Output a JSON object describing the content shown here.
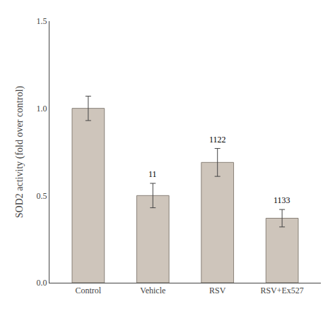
{
  "chart_data": {
    "type": "bar",
    "categories": [
      "Control",
      "Vehicle",
      "RSV",
      "RSV+Ex527"
    ],
    "values": [
      1.0,
      0.5,
      0.69,
      0.37
    ],
    "errors": [
      0.07,
      0.07,
      0.08,
      0.05
    ],
    "annotations": [
      null,
      "11",
      "1122",
      "1133"
    ],
    "color": "#cec5bb",
    "ylabel": "SOD2 activity (fold over control)",
    "ylim": [
      0.0,
      1.5
    ],
    "yticks": [
      {
        "value": 0.0,
        "label": "0.0"
      },
      0.5,
      {
        "value": 1.0,
        "label": "1.0"
      },
      1.5
    ],
    "grid": false
  }
}
